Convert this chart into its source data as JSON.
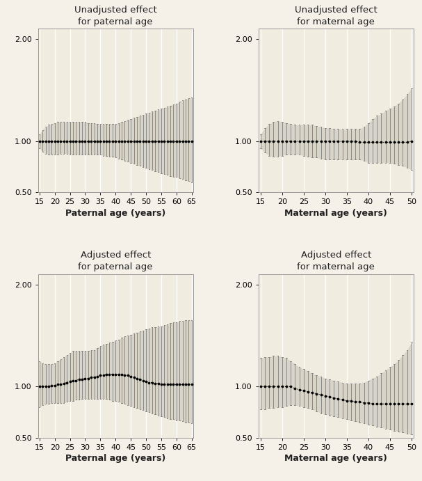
{
  "bg_color": "#f5f0e8",
  "plot_bg_color": "#f0ece0",
  "grid_color": "#d8d4c8",
  "ci_bar_color": "#aaaaaa",
  "dot_color": "#000000",
  "paternal_ages": [
    15,
    16,
    17,
    18,
    19,
    20,
    21,
    22,
    23,
    24,
    25,
    26,
    27,
    28,
    29,
    30,
    31,
    32,
    33,
    34,
    35,
    36,
    37,
    38,
    39,
    40,
    41,
    42,
    43,
    44,
    45,
    46,
    47,
    48,
    49,
    50,
    51,
    52,
    53,
    54,
    55,
    56,
    57,
    58,
    59,
    60,
    61,
    62,
    63,
    64,
    65
  ],
  "maternal_ages": [
    15,
    16,
    17,
    18,
    19,
    20,
    21,
    22,
    23,
    24,
    25,
    26,
    27,
    28,
    29,
    30,
    31,
    32,
    33,
    34,
    35,
    36,
    37,
    38,
    39,
    40,
    41,
    42,
    43,
    44,
    45,
    46,
    47,
    48,
    49,
    50
  ],
  "unadj_pat_or": [
    1.0,
    1.0,
    1.0,
    1.0,
    1.0,
    1.0,
    1.0,
    1.0,
    1.0,
    1.0,
    1.0,
    1.0,
    1.0,
    1.0,
    1.0,
    1.0,
    1.0,
    1.0,
    1.0,
    1.0,
    1.0,
    1.0,
    1.0,
    1.0,
    1.0,
    1.0,
    1.0,
    1.0,
    1.0,
    1.0,
    1.0,
    1.0,
    1.0,
    1.0,
    1.0,
    1.0,
    1.0,
    1.0,
    1.0,
    1.0,
    1.0,
    1.0,
    1.0,
    1.0,
    1.0,
    1.0,
    1.0,
    1.0,
    1.0,
    1.0,
    1.0
  ],
  "unadj_pat_lo": [
    0.93,
    0.9,
    0.88,
    0.87,
    0.87,
    0.87,
    0.87,
    0.88,
    0.88,
    0.88,
    0.87,
    0.87,
    0.87,
    0.87,
    0.87,
    0.87,
    0.87,
    0.87,
    0.87,
    0.87,
    0.87,
    0.86,
    0.86,
    0.85,
    0.85,
    0.84,
    0.83,
    0.82,
    0.81,
    0.8,
    0.79,
    0.78,
    0.77,
    0.76,
    0.75,
    0.74,
    0.73,
    0.72,
    0.71,
    0.7,
    0.69,
    0.68,
    0.67,
    0.66,
    0.65,
    0.65,
    0.64,
    0.63,
    0.62,
    0.61,
    0.6
  ],
  "unadj_pat_hi": [
    1.07,
    1.11,
    1.14,
    1.16,
    1.17,
    1.18,
    1.19,
    1.19,
    1.19,
    1.19,
    1.19,
    1.19,
    1.19,
    1.19,
    1.19,
    1.19,
    1.18,
    1.18,
    1.18,
    1.17,
    1.17,
    1.17,
    1.17,
    1.17,
    1.17,
    1.17,
    1.18,
    1.19,
    1.2,
    1.21,
    1.22,
    1.23,
    1.24,
    1.25,
    1.26,
    1.27,
    1.28,
    1.29,
    1.3,
    1.31,
    1.32,
    1.33,
    1.34,
    1.35,
    1.36,
    1.37,
    1.39,
    1.4,
    1.41,
    1.42,
    1.43
  ],
  "unadj_mat_or": [
    1.0,
    1.0,
    1.0,
    1.0,
    1.0,
    1.0,
    1.0,
    1.0,
    1.0,
    1.0,
    1.0,
    1.0,
    1.0,
    1.0,
    1.0,
    1.0,
    1.0,
    1.0,
    1.0,
    1.0,
    1.0,
    1.0,
    1.0,
    0.99,
    0.99,
    0.99,
    0.99,
    0.99,
    0.99,
    0.99,
    0.99,
    0.99,
    0.99,
    0.99,
    0.99,
    1.0
  ],
  "unadj_mat_lo": [
    0.93,
    0.89,
    0.86,
    0.85,
    0.85,
    0.86,
    0.87,
    0.87,
    0.87,
    0.87,
    0.86,
    0.85,
    0.84,
    0.84,
    0.83,
    0.82,
    0.82,
    0.82,
    0.82,
    0.82,
    0.82,
    0.82,
    0.82,
    0.82,
    0.81,
    0.79,
    0.79,
    0.79,
    0.79,
    0.79,
    0.79,
    0.78,
    0.77,
    0.76,
    0.74,
    0.72
  ],
  "unadj_mat_hi": [
    1.07,
    1.13,
    1.17,
    1.19,
    1.2,
    1.19,
    1.18,
    1.17,
    1.16,
    1.16,
    1.16,
    1.16,
    1.16,
    1.15,
    1.14,
    1.13,
    1.13,
    1.12,
    1.12,
    1.12,
    1.12,
    1.12,
    1.12,
    1.12,
    1.14,
    1.18,
    1.22,
    1.25,
    1.27,
    1.3,
    1.32,
    1.34,
    1.37,
    1.41,
    1.46,
    1.52
  ],
  "adj_pat_or": [
    1.0,
    1.0,
    1.0,
    1.0,
    1.01,
    1.01,
    1.02,
    1.02,
    1.03,
    1.04,
    1.05,
    1.06,
    1.06,
    1.07,
    1.07,
    1.08,
    1.08,
    1.09,
    1.09,
    1.1,
    1.11,
    1.11,
    1.12,
    1.12,
    1.12,
    1.12,
    1.12,
    1.12,
    1.11,
    1.11,
    1.1,
    1.09,
    1.08,
    1.07,
    1.06,
    1.05,
    1.04,
    1.04,
    1.03,
    1.03,
    1.02,
    1.02,
    1.02,
    1.02,
    1.02,
    1.02,
    1.02,
    1.02,
    1.02,
    1.02,
    1.02
  ],
  "adj_pat_lo": [
    0.8,
    0.82,
    0.83,
    0.83,
    0.84,
    0.84,
    0.84,
    0.84,
    0.84,
    0.85,
    0.86,
    0.86,
    0.87,
    0.87,
    0.88,
    0.88,
    0.88,
    0.88,
    0.88,
    0.88,
    0.88,
    0.88,
    0.88,
    0.87,
    0.86,
    0.86,
    0.85,
    0.84,
    0.83,
    0.82,
    0.81,
    0.8,
    0.79,
    0.78,
    0.77,
    0.76,
    0.75,
    0.74,
    0.73,
    0.72,
    0.71,
    0.7,
    0.69,
    0.68,
    0.68,
    0.67,
    0.67,
    0.66,
    0.65,
    0.65,
    0.64
  ],
  "adj_pat_hi": [
    1.25,
    1.23,
    1.22,
    1.22,
    1.22,
    1.23,
    1.25,
    1.27,
    1.29,
    1.31,
    1.33,
    1.35,
    1.35,
    1.35,
    1.35,
    1.35,
    1.35,
    1.36,
    1.36,
    1.38,
    1.4,
    1.41,
    1.42,
    1.43,
    1.44,
    1.45,
    1.46,
    1.48,
    1.49,
    1.5,
    1.51,
    1.52,
    1.53,
    1.54,
    1.55,
    1.56,
    1.57,
    1.58,
    1.58,
    1.59,
    1.59,
    1.6,
    1.61,
    1.62,
    1.63,
    1.63,
    1.64,
    1.64,
    1.65,
    1.65,
    1.65
  ],
  "adj_mat_or": [
    1.0,
    1.0,
    1.0,
    1.0,
    1.0,
    1.0,
    1.0,
    1.0,
    0.98,
    0.97,
    0.96,
    0.95,
    0.94,
    0.93,
    0.92,
    0.91,
    0.9,
    0.89,
    0.88,
    0.87,
    0.86,
    0.86,
    0.85,
    0.85,
    0.84,
    0.84,
    0.83,
    0.83,
    0.83,
    0.83,
    0.83,
    0.83,
    0.83,
    0.83,
    0.83,
    0.83
  ],
  "adj_mat_lo": [
    0.78,
    0.78,
    0.79,
    0.79,
    0.8,
    0.8,
    0.81,
    0.82,
    0.82,
    0.81,
    0.8,
    0.79,
    0.78,
    0.76,
    0.74,
    0.73,
    0.72,
    0.71,
    0.7,
    0.69,
    0.68,
    0.67,
    0.66,
    0.65,
    0.64,
    0.63,
    0.62,
    0.61,
    0.6,
    0.59,
    0.58,
    0.57,
    0.56,
    0.55,
    0.54,
    0.53
  ],
  "adj_mat_hi": [
    1.28,
    1.29,
    1.29,
    1.3,
    1.3,
    1.29,
    1.28,
    1.25,
    1.22,
    1.19,
    1.17,
    1.15,
    1.13,
    1.11,
    1.1,
    1.08,
    1.07,
    1.06,
    1.05,
    1.04,
    1.03,
    1.03,
    1.03,
    1.03,
    1.04,
    1.06,
    1.08,
    1.1,
    1.13,
    1.16,
    1.19,
    1.22,
    1.26,
    1.31,
    1.36,
    1.43
  ],
  "titles": [
    [
      "Unadjusted effect",
      "for paternal age"
    ],
    [
      "Unadjusted effect",
      "for maternal age"
    ],
    [
      "Adjusted effect",
      "for paternal age"
    ],
    [
      "Adjusted effect",
      "for maternal age"
    ]
  ],
  "xlabels": [
    "Paternal age (years)",
    "Maternal age (years)",
    "Paternal age (years)",
    "Maternal age (years)"
  ],
  "pat_xticks": [
    15,
    20,
    25,
    30,
    35,
    40,
    45,
    50,
    55,
    60,
    65
  ],
  "mat_xticks": [
    15,
    20,
    25,
    30,
    35,
    40,
    45,
    50
  ],
  "ylim": [
    0.5,
    2.1
  ],
  "yticks": [
    0.5,
    1.0,
    2.0
  ],
  "title_fontsize": 9.5,
  "label_fontsize": 9,
  "tick_fontsize": 8
}
